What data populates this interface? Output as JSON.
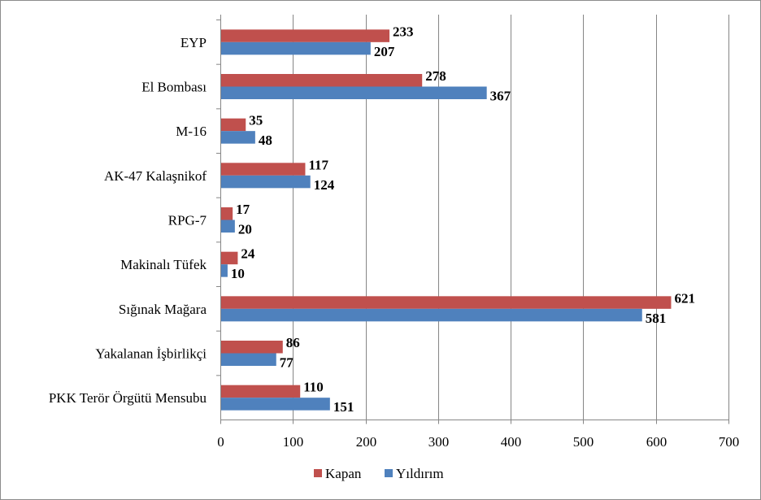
{
  "chart_data": {
    "type": "bar",
    "orientation": "horizontal",
    "title": "",
    "xlabel": "",
    "ylabel": "",
    "categories": [
      "EYP",
      "El Bombası",
      "M-16",
      "AK-47 Kalaşnikof",
      "RPG-7",
      "Makinalı Tüfek",
      "Sığınak Mağara",
      "Yakalanan İşbirlikçi",
      "PKK Terör Örgütü Mensubu"
    ],
    "series": [
      {
        "name": "Kapan",
        "color": "#c0504d",
        "values": [
          233,
          278,
          35,
          117,
          17,
          24,
          621,
          86,
          110
        ]
      },
      {
        "name": "Yıldırım",
        "color": "#4f81bd",
        "values": [
          207,
          367,
          48,
          124,
          20,
          10,
          581,
          77,
          151
        ]
      }
    ],
    "xlim": [
      0,
      700
    ],
    "xticks": [
      "0",
      "100",
      "200",
      "300",
      "400",
      "500",
      "600",
      "700"
    ],
    "grid": "vertical",
    "legend": "bottom"
  }
}
